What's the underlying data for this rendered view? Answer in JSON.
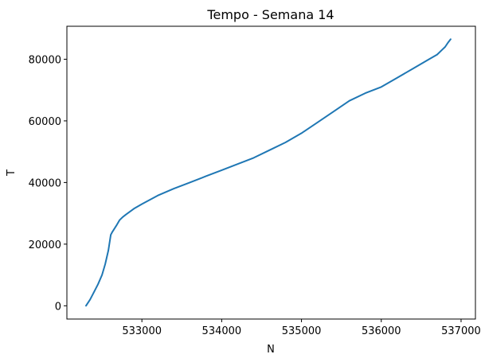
{
  "chart_data": {
    "type": "line",
    "title": "Tempo - Semana 14",
    "xlabel": "N",
    "ylabel": "T",
    "xlim": [
      532060,
      537180
    ],
    "ylim": [
      -4300,
      90700
    ],
    "xticks": [
      533000,
      534000,
      535000,
      536000,
      537000
    ],
    "xtick_labels": [
      "533000",
      "534000",
      "535000",
      "536000",
      "537000"
    ],
    "yticks": [
      0,
      20000,
      40000,
      60000,
      80000
    ],
    "ytick_labels": [
      "0",
      "20000",
      "40000",
      "60000",
      "80000"
    ],
    "grid": false,
    "series_color": "#1f77b4",
    "series": [
      {
        "x": [
          532300,
          532350,
          532400,
          532450,
          532500,
          532540,
          532580,
          532610,
          532630,
          532650,
          532680,
          532720,
          532760,
          532800,
          532900,
          533000,
          533200,
          533400,
          533600,
          533800,
          534000,
          534200,
          534400,
          534600,
          534800,
          535000,
          535200,
          535400,
          535600,
          535800,
          536000,
          536200,
          536400,
          536600,
          536700,
          536760,
          536800,
          536840,
          536870
        ],
        "y": [
          0,
          2000,
          4500,
          7000,
          10000,
          13500,
          18000,
          23000,
          24000,
          24800,
          26000,
          27800,
          28800,
          29600,
          31500,
          33000,
          35800,
          38000,
          40000,
          42000,
          44000,
          46000,
          48000,
          50500,
          53000,
          56000,
          59500,
          63000,
          66500,
          69000,
          71000,
          74000,
          77000,
          80000,
          81500,
          83000,
          84000,
          85500,
          86500
        ]
      }
    ]
  }
}
